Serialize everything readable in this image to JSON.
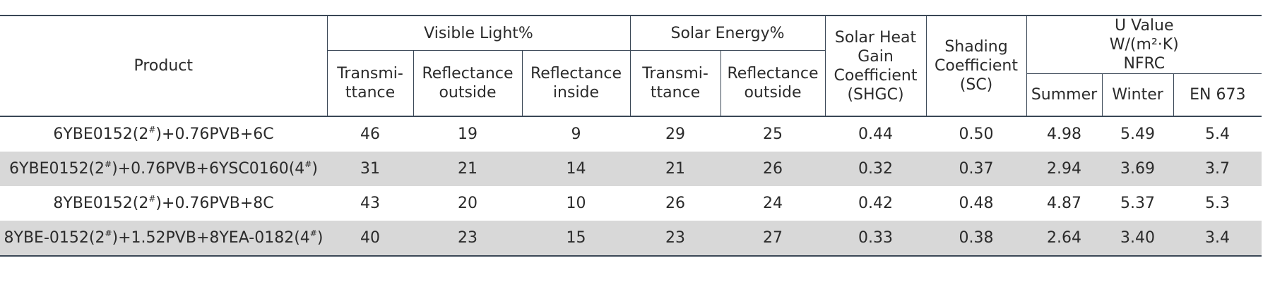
{
  "table": {
    "headers": {
      "product": "Product",
      "visible_light": "Visible Light%",
      "solar_energy": "Solar Energy%",
      "shgc": "Solar Heat\nGain\nCoefficient\n(SHGC)",
      "sc": "Shading\nCoefficient\n(SC)",
      "u_value": "U Value\nW/(m²·K)\nNFRC",
      "vl_transmittance": "Transmi-\nttance",
      "vl_reflectance_outside": "Reflectance\noutside",
      "vl_reflectance_inside": "Reflectance\ninside",
      "se_transmittance": "Transmi-\nttance",
      "se_reflectance_outside": "Reflectance\noutside",
      "summer": "Summer",
      "winter": "Winter",
      "en673": "EN 673"
    },
    "rows": [
      [
        "6YBE0152(2#)+0.76PVB+6C",
        "46",
        "19",
        "9",
        "29",
        "25",
        "0.44",
        "0.50",
        "4.98",
        "5.49",
        "5.4"
      ],
      [
        "6YBE0152(2#)+0.76PVB+6YSC0160(4#)",
        "31",
        "21",
        "14",
        "21",
        "26",
        "0.32",
        "0.37",
        "2.94",
        "3.69",
        "3.7"
      ],
      [
        "8YBE0152(2#)+0.76PVB+8C",
        "43",
        "20",
        "10",
        "26",
        "24",
        "0.42",
        "0.48",
        "4.87",
        "5.37",
        "5.3"
      ],
      [
        "8YBE-0152(2#)+1.52PVB+8YEA-0182(4#)",
        "40",
        "23",
        "15",
        "23",
        "27",
        "0.33",
        "0.38",
        "2.64",
        "3.40",
        "3.4"
      ]
    ]
  }
}
